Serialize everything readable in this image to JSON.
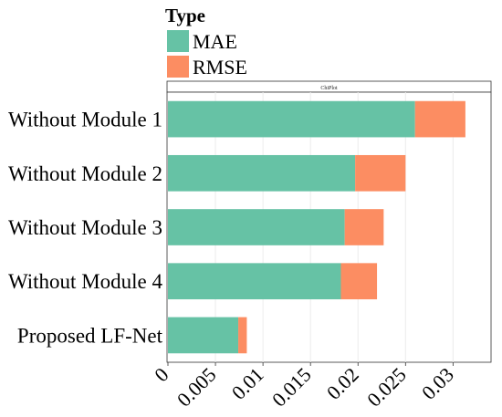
{
  "chart_data": {
    "type": "bar",
    "stacked": true,
    "orientation": "horizontal",
    "panel_title": "ChiPlot",
    "legend": {
      "title": "Type",
      "placement": "top-left"
    },
    "categories": [
      "Without Module 1",
      "Without Module 2",
      "Without Module 3",
      "Without Module 4",
      "Proposed LF-Net"
    ],
    "series": [
      {
        "name": "MAE",
        "color": "#66c2a5",
        "values": [
          0.026,
          0.0197,
          0.0186,
          0.0182,
          0.0074
        ]
      },
      {
        "name": "RMSE",
        "color": "#fc8d62",
        "values": [
          0.0053,
          0.0053,
          0.0041,
          0.0038,
          0.0009
        ]
      }
    ],
    "xlim": [
      0,
      0.034
    ],
    "xticks": [
      0,
      0.005,
      0.01,
      0.015,
      0.02,
      0.025,
      0.03
    ],
    "xtick_labels": [
      "0",
      "0.005",
      "0.01",
      "0.015",
      "0.02",
      "0.025",
      "0.03"
    ],
    "grid": true,
    "xlabel": "",
    "ylabel": ""
  }
}
